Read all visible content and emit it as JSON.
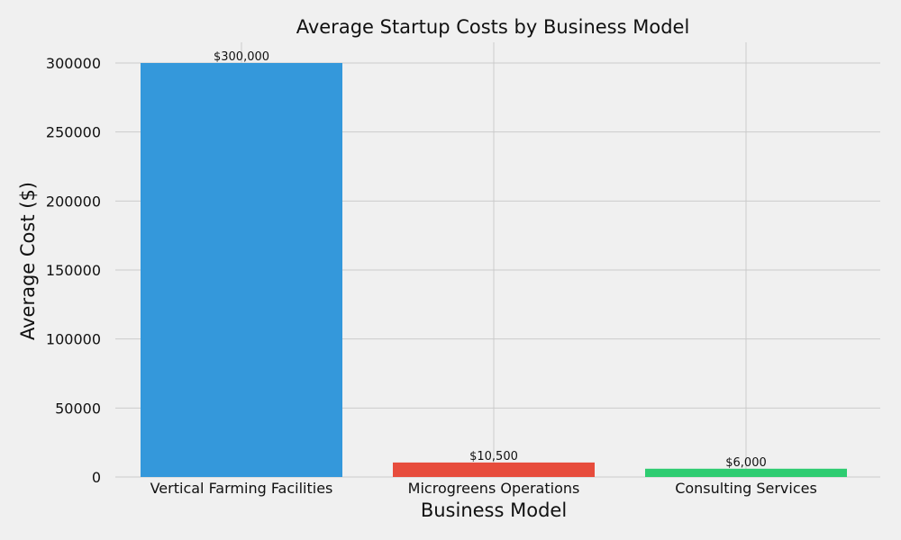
{
  "chart_data": {
    "type": "bar",
    "title": "Average Startup Costs by Business Model",
    "xlabel": "Business Model",
    "ylabel": "Average Cost ($)",
    "categories": [
      "Vertical Farming Facilities",
      "Microgreens Operations",
      "Consulting Services"
    ],
    "values": [
      300000,
      10500,
      6000
    ],
    "data_labels": [
      "$300,000",
      "$10,500",
      "$6,000"
    ],
    "colors": [
      "#3498db",
      "#e74c3c",
      "#2ecc71"
    ],
    "yticks": [
      0,
      50000,
      100000,
      150000,
      200000,
      250000,
      300000
    ],
    "ytick_labels": [
      "0",
      "50000",
      "100000",
      "150000",
      "200000",
      "250000",
      "300000"
    ],
    "ylim": [
      0,
      315000
    ],
    "grid": true,
    "legend": "none"
  }
}
